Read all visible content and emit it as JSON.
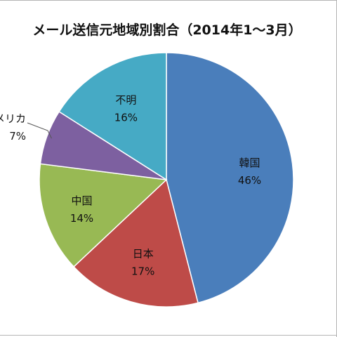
{
  "chart_data": {
    "type": "pie",
    "title": "メール送信元地域別割合（2014年1～3月）",
    "slices": [
      {
        "label": "韓国",
        "value": 46,
        "value_label": "46%",
        "color": "#4a7ebb"
      },
      {
        "label": "日本",
        "value": 17,
        "value_label": "17%",
        "color": "#be4b48"
      },
      {
        "label": "中国",
        "value": 14,
        "value_label": "14%",
        "color": "#98b954"
      },
      {
        "label": "アメリカ",
        "value": 7,
        "value_label": "7%",
        "color": "#7d60a0"
      },
      {
        "label": "不明",
        "value": 16,
        "value_label": "16%",
        "color": "#46aac5"
      }
    ],
    "start": "12 o'clock",
    "direction": "clockwise",
    "legend": "none"
  }
}
